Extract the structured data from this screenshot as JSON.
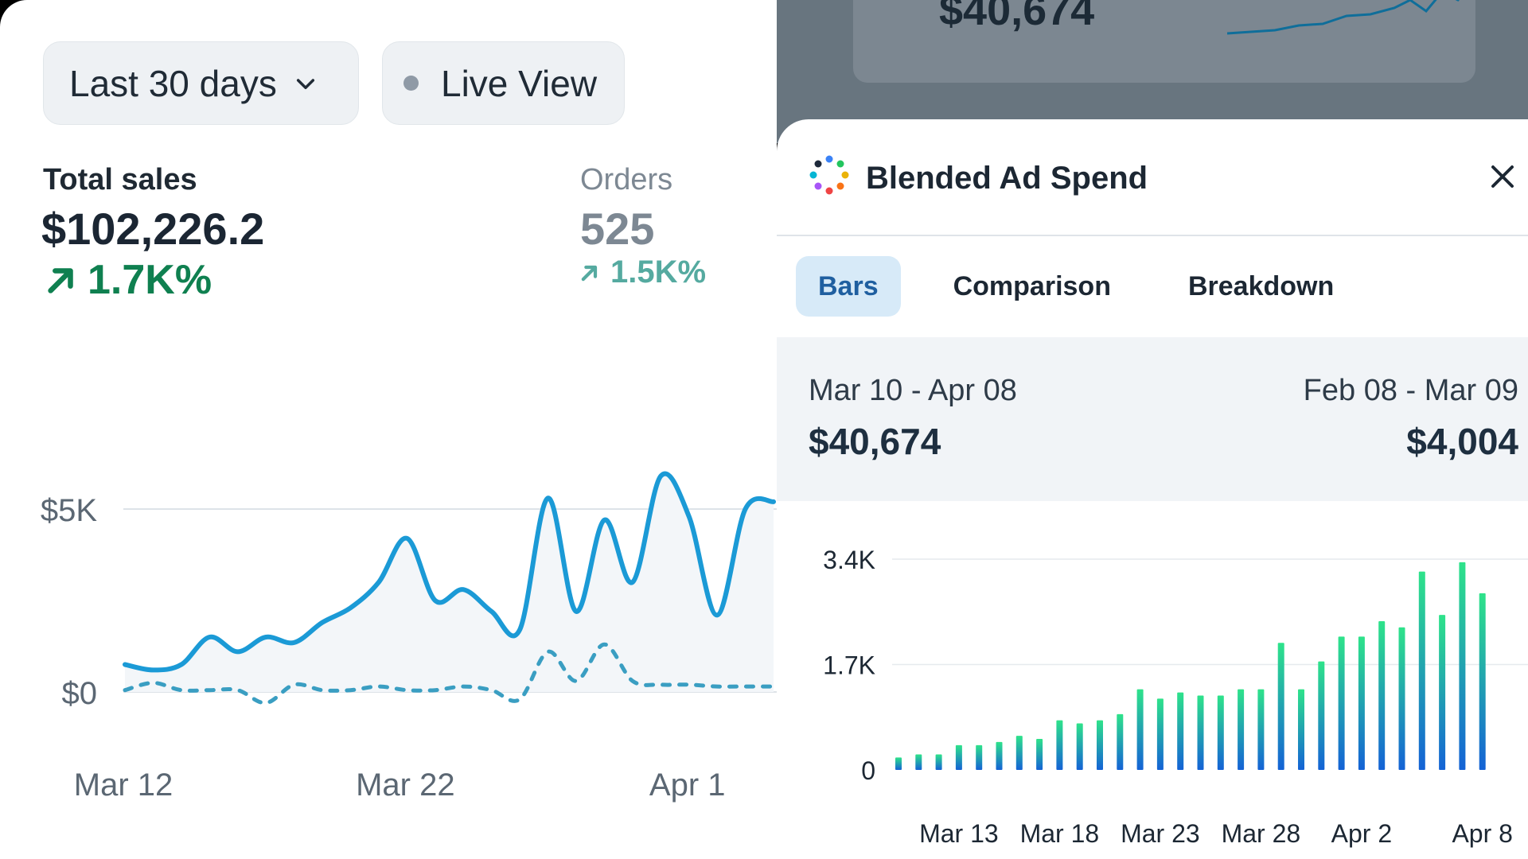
{
  "left": {
    "date_range_label": "Last 30 days",
    "live_view_label": "Live View",
    "total_sales": {
      "label": "Total sales",
      "value": "$102,226.2",
      "change": "1.7K%"
    },
    "orders": {
      "label": "Orders",
      "value": "525",
      "change": "1.5K%"
    }
  },
  "background": {
    "card_value": "$40,674"
  },
  "sheet": {
    "title": "Blended Ad Spend",
    "tabs": [
      "Bars",
      "Comparison",
      "Breakdown"
    ],
    "current": {
      "range": "Mar 10 - Apr 08",
      "value": "$40,674"
    },
    "previous": {
      "range": "Feb 08 - Mar 09",
      "value": "$4,004"
    }
  },
  "colors": {
    "accent": "#1b9ad6",
    "positive": "#0f8050",
    "bar_top": "#2ee38a",
    "bar_bottom": "#1462d6"
  },
  "icons": [
    "chevron-down-icon",
    "live-dot-icon",
    "arrow-up-right-icon",
    "ai-logo-icon",
    "close-icon"
  ],
  "chart_data": [
    {
      "type": "line",
      "title": "",
      "xlabel": "",
      "ylabel": "",
      "x_tick_labels": [
        "Mar 12",
        "Mar 22",
        "Apr 1"
      ],
      "y_tick_labels": [
        "$5K",
        "$0"
      ],
      "x": [
        1,
        2,
        3,
        4,
        5,
        6,
        7,
        8,
        9,
        10,
        11,
        12,
        13,
        14,
        15,
        16,
        17,
        18,
        19,
        20,
        21,
        22,
        23,
        24
      ],
      "x_label_positions": {
        "Mar 12": 1,
        "Mar 22": 11,
        "Apr 1": 21
      },
      "ylim": [
        0,
        5000
      ],
      "grid": true,
      "series": [
        {
          "values": [
            750,
            600,
            750,
            1500,
            1100,
            1500,
            1350,
            1900,
            2300,
            3000,
            4200,
            2500,
            2800,
            2200,
            1700,
            5300,
            2200,
            4700,
            3000,
            5900,
            4800,
            2100,
            5000,
            5200
          ]
        },
        {
          "style": "dashed",
          "values": [
            50,
            250,
            50,
            50,
            50,
            -300,
            200,
            50,
            50,
            150,
            50,
            50,
            150,
            50,
            -200,
            1100,
            300,
            1300,
            300,
            200,
            200,
            150,
            150,
            150
          ]
        }
      ]
    },
    {
      "type": "bar",
      "title": "",
      "xlabel": "",
      "ylabel": "",
      "y_tick_labels": [
        "3.4K",
        "1.7K",
        "0"
      ],
      "ylim": [
        0,
        3400
      ],
      "grid": true,
      "categories": [
        "Mar 10",
        "Mar 11",
        "Mar 12",
        "Mar 13",
        "Mar 14",
        "Mar 15",
        "Mar 16",
        "Mar 17",
        "Mar 18",
        "Mar 19",
        "Mar 20",
        "Mar 21",
        "Mar 22",
        "Mar 23",
        "Mar 24",
        "Mar 25",
        "Mar 26",
        "Mar 27",
        "Mar 28",
        "Mar 29",
        "Mar 30",
        "Mar 31",
        "Apr 1",
        "Apr 2",
        "Apr 3",
        "Apr 4",
        "Apr 5",
        "Apr 6",
        "Apr 7",
        "Apr 8"
      ],
      "x_tick_labels": [
        "Mar 13",
        "Mar 18",
        "Mar 23",
        "Mar 28",
        "Apr 2",
        "Apr 8"
      ],
      "values": [
        200,
        250,
        250,
        400,
        400,
        450,
        550,
        500,
        800,
        750,
        800,
        900,
        1300,
        1150,
        1250,
        1200,
        1200,
        1300,
        1300,
        2050,
        1300,
        1750,
        2150,
        2150,
        2400,
        2300,
        3200,
        2500,
        3350,
        2850
      ]
    }
  ]
}
